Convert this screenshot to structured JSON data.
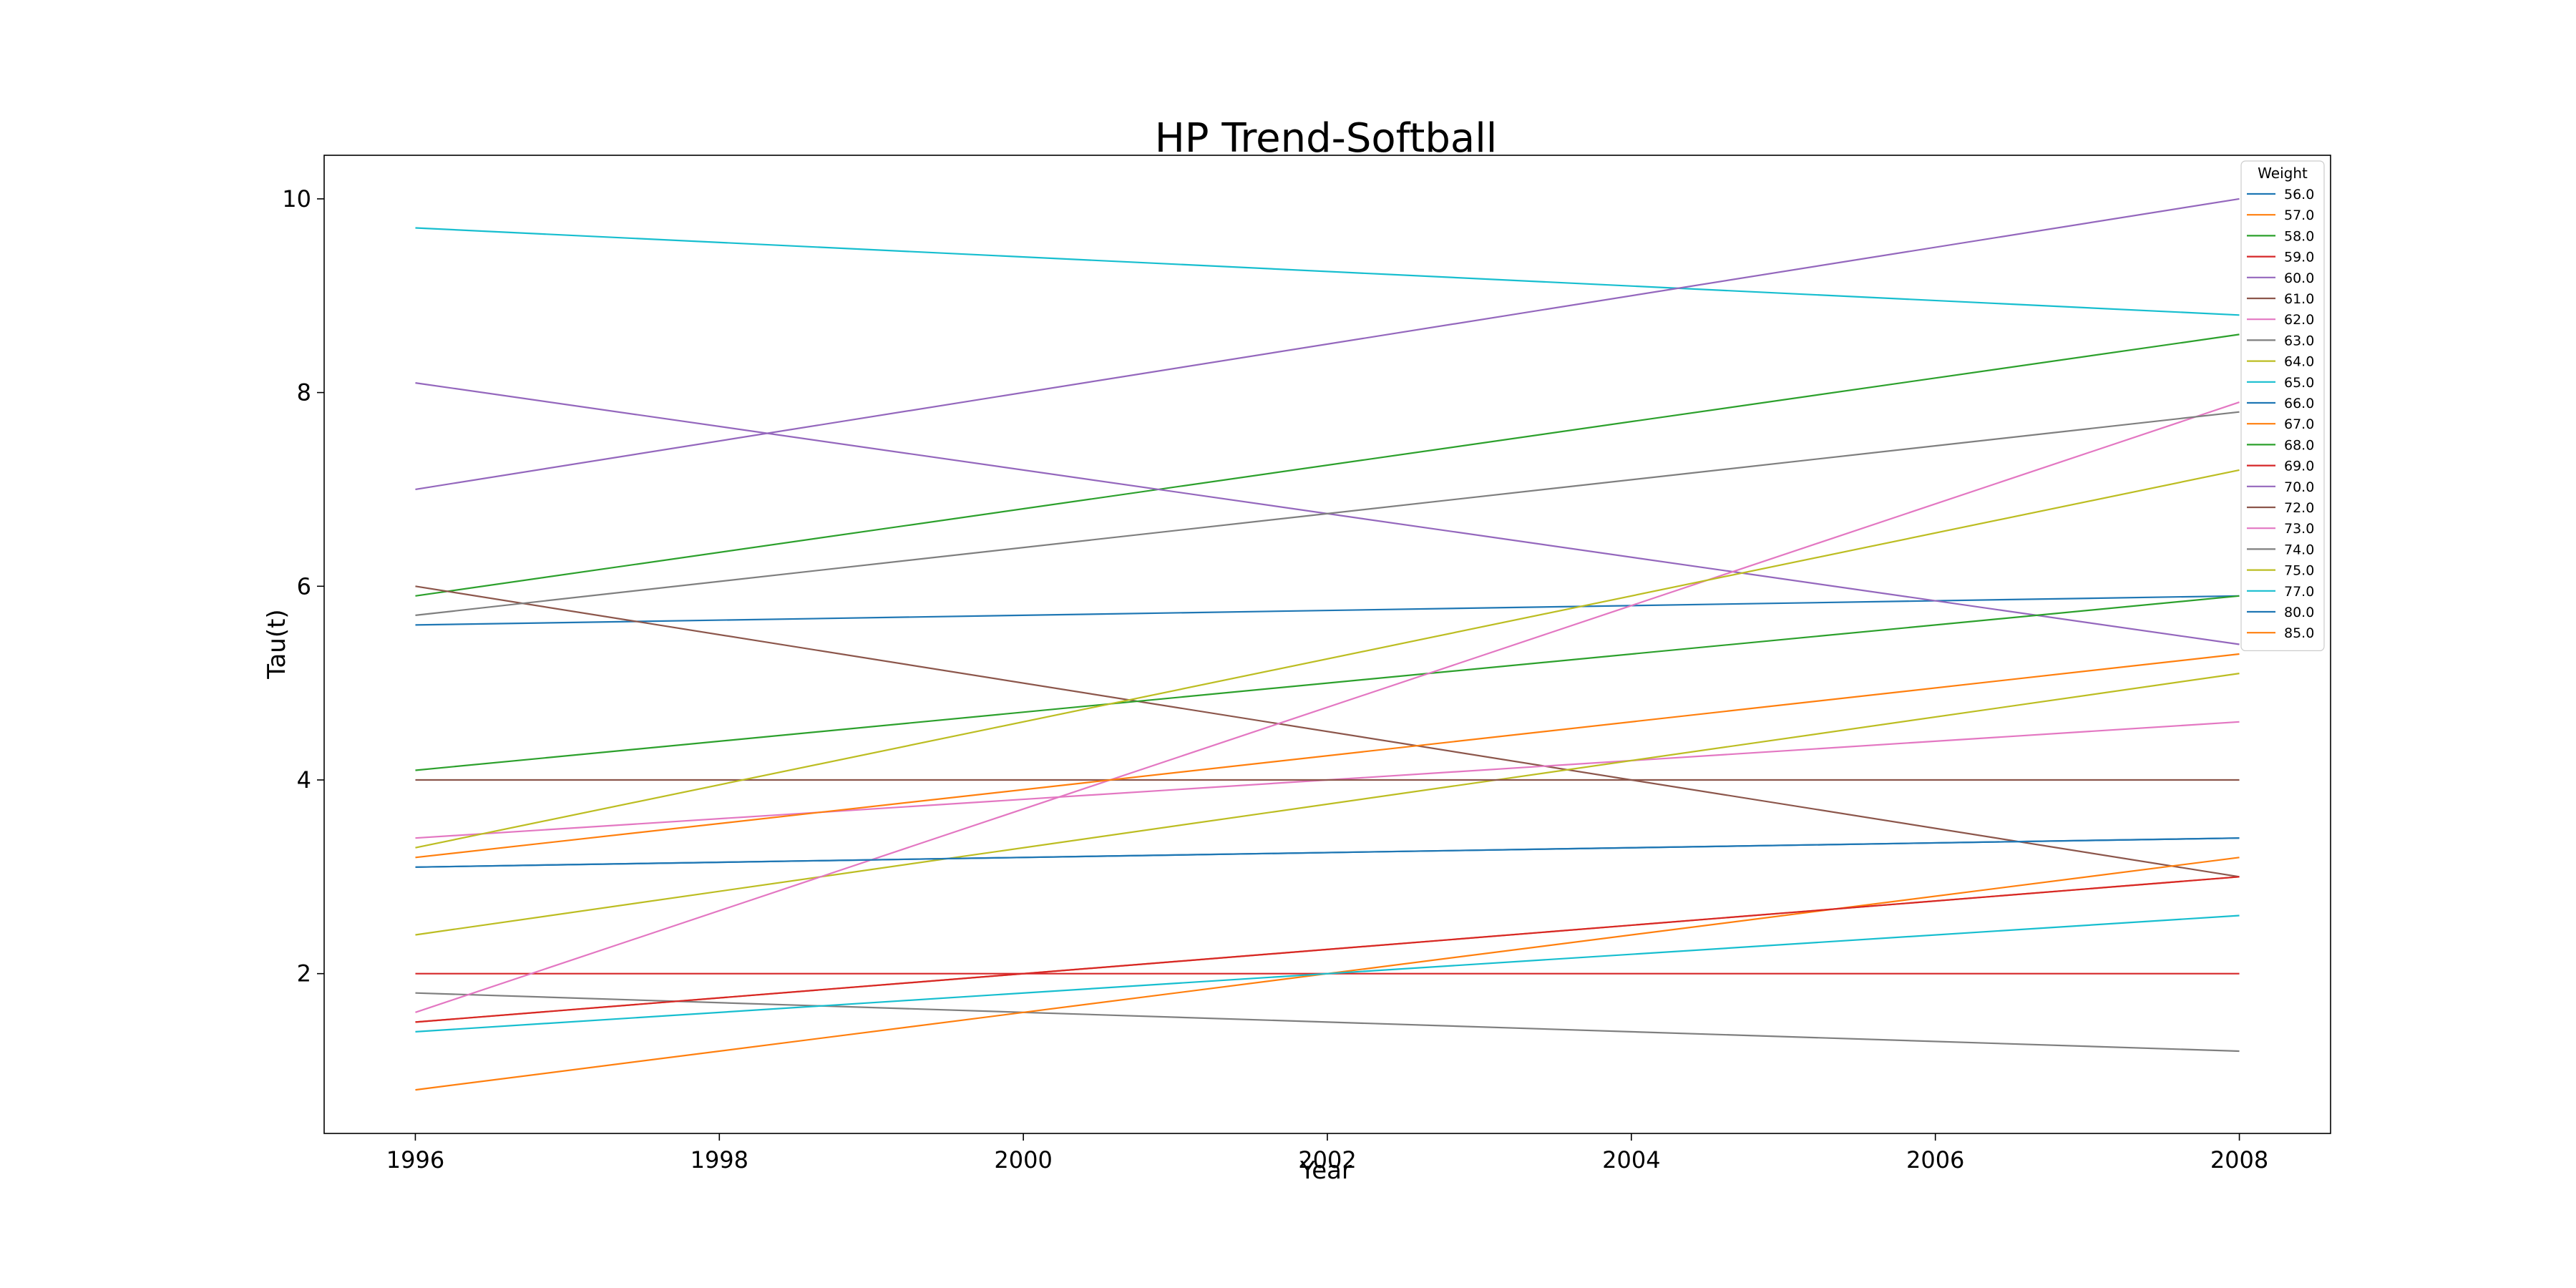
{
  "chart_data": {
    "type": "line",
    "title": "HP Trend-Softball",
    "xlabel": "Year",
    "ylabel": "Tau(t)",
    "xlim": [
      1995.4,
      2008.6
    ],
    "ylim": [
      0.35,
      10.45
    ],
    "xticks": [
      1996,
      1998,
      2000,
      2002,
      2004,
      2006,
      2008
    ],
    "xtick_labels": [
      "1996",
      "1998",
      "2000",
      "2002",
      "2004",
      "2006",
      "2008"
    ],
    "yticks": [
      2,
      4,
      6,
      8,
      10
    ],
    "ytick_labels": [
      "2",
      "4",
      "6",
      "8",
      "10"
    ],
    "grid": false,
    "legend": {
      "title": "Weight",
      "placement": "top-right"
    },
    "x": [
      1996,
      2008
    ],
    "series": [
      {
        "name": "56.0",
        "color": "#1f77b4",
        "values": [
          5.6,
          5.9
        ]
      },
      {
        "name": "57.0",
        "color": "#ff7f0e",
        "values": [
          1.5,
          3.0
        ]
      },
      {
        "name": "58.0",
        "color": "#2ca02c",
        "values": [
          5.9,
          8.6
        ]
      },
      {
        "name": "59.0",
        "color": "#d62728",
        "values": [
          2.0,
          2.0
        ]
      },
      {
        "name": "60.0",
        "color": "#9467bd",
        "values": [
          8.1,
          5.4
        ]
      },
      {
        "name": "61.0",
        "color": "#8c564b",
        "values": [
          6.0,
          3.0
        ]
      },
      {
        "name": "62.0",
        "color": "#e377c2",
        "values": [
          3.4,
          4.6
        ]
      },
      {
        "name": "63.0",
        "color": "#7f7f7f",
        "values": [
          1.8,
          1.2
        ]
      },
      {
        "name": "64.0",
        "color": "#bcbd22",
        "values": [
          2.4,
          5.1
        ]
      },
      {
        "name": "65.0",
        "color": "#17becf",
        "values": [
          9.7,
          8.8
        ]
      },
      {
        "name": "66.0",
        "color": "#1f77b4",
        "values": [
          3.1,
          3.4
        ]
      },
      {
        "name": "67.0",
        "color": "#ff7f0e",
        "values": [
          0.8,
          3.2
        ]
      },
      {
        "name": "68.0",
        "color": "#2ca02c",
        "values": [
          4.1,
          5.9
        ]
      },
      {
        "name": "69.0",
        "color": "#d62728",
        "values": [
          1.5,
          3.0
        ]
      },
      {
        "name": "70.0",
        "color": "#9467bd",
        "values": [
          7.0,
          10.0
        ]
      },
      {
        "name": "72.0",
        "color": "#8c564b",
        "values": [
          4.0,
          4.0
        ]
      },
      {
        "name": "73.0",
        "color": "#e377c2",
        "values": [
          1.6,
          7.9
        ]
      },
      {
        "name": "74.0",
        "color": "#7f7f7f",
        "values": [
          5.7,
          7.8
        ]
      },
      {
        "name": "75.0",
        "color": "#bcbd22",
        "values": [
          3.3,
          7.2
        ]
      },
      {
        "name": "77.0",
        "color": "#17becf",
        "values": [
          1.4,
          2.6
        ]
      },
      {
        "name": "80.0",
        "color": "#1f77b4",
        "values": [
          3.1,
          3.4
        ]
      },
      {
        "name": "85.0",
        "color": "#ff7f0e",
        "values": [
          3.2,
          5.3
        ]
      }
    ]
  }
}
